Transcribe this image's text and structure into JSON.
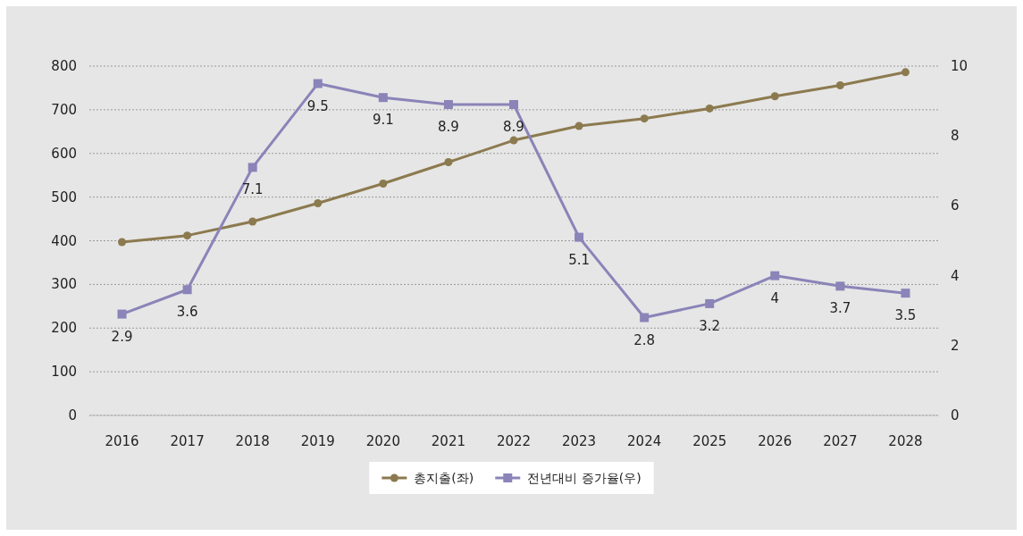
{
  "chart_data": {
    "type": "line",
    "categories": [
      "2016",
      "2017",
      "2018",
      "2019",
      "2020",
      "2021",
      "2022",
      "2023",
      "2024",
      "2025",
      "2026",
      "2027",
      "2028"
    ],
    "series": [
      {
        "name": "총지출(좌)",
        "color": "#8c7a4f",
        "marker": "circle",
        "values": [
          397,
          412,
          444,
          486,
          531,
          580,
          630,
          663,
          680,
          703,
          731,
          756,
          786
        ]
      },
      {
        "name": "전년대비 증가율(우)",
        "color": "#8a84b8",
        "marker": "square",
        "axis": "y2",
        "data_labels": true,
        "values": [
          2.9,
          3.6,
          7.1,
          9.5,
          9.1,
          8.9,
          8.9,
          5.1,
          2.8,
          3.2,
          4,
          3.7,
          3.5
        ]
      }
    ],
    "ylim": [
      0,
      800
    ],
    "yticks": [
      0,
      100,
      200,
      300,
      400,
      500,
      600,
      700,
      800
    ],
    "y2lim": [
      0,
      10
    ],
    "y2ticks": [
      0,
      2,
      4,
      6,
      8,
      10
    ],
    "grid": "y",
    "legend": "bottom"
  }
}
